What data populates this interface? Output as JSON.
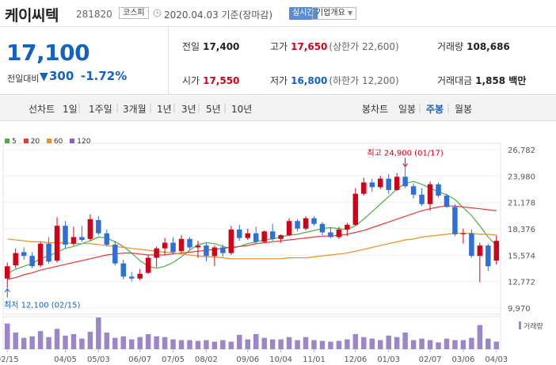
{
  "header": {
    "name": "케이씨텍",
    "code": "281820",
    "market": "코스피",
    "date": "2020.04.03 기준(장마감)",
    "live": "실시간",
    "overview": "기업개요"
  },
  "quote": {
    "price": "17,100",
    "change_label": "전일대비",
    "change_arrow": "▼",
    "change": "300",
    "change_pct": "-1.72%"
  },
  "stats": {
    "prev_label": "전일",
    "prev": "17,400",
    "high_label": "고가",
    "high": "17,650",
    "upper_limit": "(상한가 22,600)",
    "volume_label": "거래량",
    "volume": "108,686",
    "open_label": "시가",
    "open": "17,550",
    "low_label": "저가",
    "low": "16,800",
    "lower_limit": "(하한가 12,200)",
    "amount_label": "거래대금",
    "amount": "1,858 백만"
  },
  "periods": {
    "line_label": "선차트",
    "line_items": [
      "1일",
      "1주일",
      "3개월",
      "1년",
      "3년",
      "5년",
      "10년"
    ],
    "candle_label": "봉차트",
    "candle_items": [
      "일봉",
      "주봉",
      "월봉"
    ],
    "candle_selected": 1
  },
  "colors": {
    "up": "#d0021b",
    "down": "#2f6fd6",
    "ma5": "#4caf3e",
    "ma20": "#e53a3a",
    "ma60": "#f08c2a",
    "ma120": "#8a5fc9",
    "volume": "#9b87c8"
  },
  "chart_data": {
    "type": "candlestick",
    "interval": "주봉",
    "legend": [
      "5",
      "20",
      "60",
      "120"
    ],
    "y_ticks": [
      26782,
      23980,
      21178,
      18376,
      15574,
      12772,
      9970
    ],
    "ylim": [
      9970,
      26782
    ],
    "x_ticks": [
      "02/15",
      "04/05",
      "05/03",
      "06/07",
      "07/05",
      "08/02",
      "09/06",
      "10/04",
      "11/01",
      "12/06",
      "01/03",
      "02/07",
      "03/06",
      "04/03"
    ],
    "x_tick_index": [
      0,
      7,
      11,
      16,
      20,
      24,
      29,
      33,
      37,
      42,
      46,
      51,
      55,
      59
    ],
    "annotations": {
      "high_label": "최고 24,900 (01/17)",
      "high_value": 24900,
      "high_index": 48,
      "low_label": "최저 12,100 (02/15)",
      "low_value": 12100,
      "low_index": 0
    },
    "volume_label": "거래량",
    "candles": [
      {
        "o": 13100,
        "h": 14800,
        "l": 12100,
        "c": 14400
      },
      {
        "o": 14500,
        "h": 16300,
        "l": 14200,
        "c": 15800
      },
      {
        "o": 15900,
        "h": 16400,
        "l": 15100,
        "c": 15500
      },
      {
        "o": 15500,
        "h": 15900,
        "l": 14200,
        "c": 14400
      },
      {
        "o": 14500,
        "h": 17000,
        "l": 14300,
        "c": 16800
      },
      {
        "o": 16800,
        "h": 17500,
        "l": 14700,
        "c": 14900
      },
      {
        "o": 15000,
        "h": 19600,
        "l": 14800,
        "c": 18700
      },
      {
        "o": 18700,
        "h": 19200,
        "l": 16300,
        "c": 16700
      },
      {
        "o": 16800,
        "h": 18600,
        "l": 16600,
        "c": 17500
      },
      {
        "o": 17500,
        "h": 18700,
        "l": 17000,
        "c": 17200
      },
      {
        "o": 17300,
        "h": 19900,
        "l": 17100,
        "c": 19400
      },
      {
        "o": 19300,
        "h": 19700,
        "l": 17700,
        "c": 17900
      },
      {
        "o": 17900,
        "h": 18300,
        "l": 16500,
        "c": 16700
      },
      {
        "o": 16700,
        "h": 17100,
        "l": 14500,
        "c": 14700
      },
      {
        "o": 14700,
        "h": 15100,
        "l": 13000,
        "c": 13300
      },
      {
        "o": 13300,
        "h": 13800,
        "l": 12800,
        "c": 13100
      },
      {
        "o": 13100,
        "h": 14100,
        "l": 12900,
        "c": 13600
      },
      {
        "o": 13700,
        "h": 15600,
        "l": 13600,
        "c": 15300
      },
      {
        "o": 15300,
        "h": 16500,
        "l": 14300,
        "c": 16300
      },
      {
        "o": 16300,
        "h": 17400,
        "l": 15600,
        "c": 16900
      },
      {
        "o": 16900,
        "h": 17500,
        "l": 15700,
        "c": 15900
      },
      {
        "o": 16000,
        "h": 17700,
        "l": 15800,
        "c": 17300
      },
      {
        "o": 17300,
        "h": 17500,
        "l": 16200,
        "c": 16400
      },
      {
        "o": 16400,
        "h": 17100,
        "l": 15300,
        "c": 16600
      },
      {
        "o": 16600,
        "h": 16900,
        "l": 14900,
        "c": 15500
      },
      {
        "o": 15500,
        "h": 16600,
        "l": 14400,
        "c": 16400
      },
      {
        "o": 16400,
        "h": 16700,
        "l": 15400,
        "c": 15800
      },
      {
        "o": 15800,
        "h": 18700,
        "l": 15600,
        "c": 18300
      },
      {
        "o": 18300,
        "h": 18800,
        "l": 17100,
        "c": 17400
      },
      {
        "o": 17400,
        "h": 18400,
        "l": 17200,
        "c": 17900
      },
      {
        "o": 17900,
        "h": 18600,
        "l": 16800,
        "c": 17000
      },
      {
        "o": 17000,
        "h": 18200,
        "l": 16900,
        "c": 18100
      },
      {
        "o": 18100,
        "h": 18900,
        "l": 17100,
        "c": 17300
      },
      {
        "o": 17300,
        "h": 17800,
        "l": 16900,
        "c": 17700
      },
      {
        "o": 17700,
        "h": 19500,
        "l": 17600,
        "c": 19200
      },
      {
        "o": 19200,
        "h": 19400,
        "l": 18100,
        "c": 18400
      },
      {
        "o": 18400,
        "h": 19700,
        "l": 18200,
        "c": 19500
      },
      {
        "o": 19500,
        "h": 19700,
        "l": 18700,
        "c": 18900
      },
      {
        "o": 18900,
        "h": 19100,
        "l": 17700,
        "c": 18000
      },
      {
        "o": 18000,
        "h": 18500,
        "l": 17400,
        "c": 17500
      },
      {
        "o": 17500,
        "h": 18600,
        "l": 17300,
        "c": 18300
      },
      {
        "o": 18300,
        "h": 19000,
        "l": 17600,
        "c": 18800
      },
      {
        "o": 18800,
        "h": 22700,
        "l": 18700,
        "c": 22100
      },
      {
        "o": 22100,
        "h": 23800,
        "l": 21900,
        "c": 23300
      },
      {
        "o": 23300,
        "h": 23700,
        "l": 22300,
        "c": 22800
      },
      {
        "o": 22800,
        "h": 24000,
        "l": 22600,
        "c": 23700
      },
      {
        "o": 23700,
        "h": 24200,
        "l": 22100,
        "c": 22500
      },
      {
        "o": 22500,
        "h": 24300,
        "l": 22400,
        "c": 23900
      },
      {
        "o": 23900,
        "h": 24900,
        "l": 22700,
        "c": 22900
      },
      {
        "o": 22900,
        "h": 23200,
        "l": 21600,
        "c": 22000
      },
      {
        "o": 22000,
        "h": 22700,
        "l": 20800,
        "c": 21000
      },
      {
        "o": 21000,
        "h": 23400,
        "l": 20300,
        "c": 23100
      },
      {
        "o": 23100,
        "h": 23300,
        "l": 21700,
        "c": 21900
      },
      {
        "o": 21900,
        "h": 22100,
        "l": 20600,
        "c": 20700
      },
      {
        "o": 20700,
        "h": 21000,
        "l": 17600,
        "c": 17800
      },
      {
        "o": 17800,
        "h": 18400,
        "l": 16800,
        "c": 17900
      },
      {
        "o": 17900,
        "h": 18300,
        "l": 15300,
        "c": 15500
      },
      {
        "o": 15500,
        "h": 16900,
        "l": 12700,
        "c": 16600
      },
      {
        "o": 16600,
        "h": 16800,
        "l": 13900,
        "c": 14400
      },
      {
        "o": 15000,
        "h": 17650,
        "l": 14600,
        "c": 17100
      }
    ],
    "volumes": [
      3.4,
      2.2,
      1.5,
      1.7,
      2.4,
      1.6,
      2.7,
      1.8,
      2.0,
      1.4,
      2.3,
      4.2,
      2.2,
      1.5,
      1.7,
      1.3,
      1.6,
      2.0,
      1.7,
      1.6,
      1.3,
      1.2,
      1.2,
      1.1,
      1.2,
      1.0,
      1.2,
      1.0,
      1.9,
      1.3,
      2.0,
      1.5,
      1.3,
      1.3,
      1.6,
      1.2,
      1.6,
      1.2,
      1.1,
      1.0,
      1.1,
      1.3,
      2.0,
      1.6,
      1.4,
      1.2,
      1.8,
      1.6,
      2.2,
      1.2,
      1.4,
      1.2,
      0.9,
      1.4,
      1.2,
      1.2,
      1.5,
      3.2,
      1.4,
      1.0
    ],
    "ma": {
      "5": [
        13600,
        14100,
        14400,
        14700,
        15200,
        15500,
        15900,
        16300,
        16500,
        16800,
        17100,
        17500,
        17400,
        17000,
        16500,
        15800,
        15000,
        14400,
        14200,
        14400,
        14800,
        15400,
        16100,
        16700,
        16900,
        16800,
        16500,
        16300,
        16500,
        16800,
        17000,
        17200,
        17300,
        17500,
        17700,
        17800,
        18000,
        18200,
        18400,
        18500,
        18400,
        18300,
        18700,
        19400,
        20200,
        21000,
        21800,
        22600,
        23200,
        23400,
        23100,
        22700,
        22300,
        22000,
        21500,
        20600,
        19800,
        18700,
        17500,
        16600
      ],
      "20": [
        13000,
        13200,
        13500,
        13700,
        14000,
        14200,
        14400,
        14600,
        14800,
        15000,
        15200,
        15400,
        15600,
        15700,
        15800,
        15800,
        15700,
        15600,
        15600,
        15600,
        15700,
        15800,
        15900,
        16000,
        16100,
        16200,
        16300,
        16400,
        16500,
        16600,
        16800,
        16900,
        17000,
        17100,
        17200,
        17300,
        17400,
        17500,
        17600,
        17600,
        17700,
        17800,
        18000,
        18200,
        18500,
        18800,
        19100,
        19400,
        19700,
        20000,
        20300,
        20500,
        20700,
        20800,
        20800,
        20700,
        20600,
        20500,
        20400,
        20300
      ],
      "60": [
        17300,
        17200,
        17100,
        17000,
        17000,
        16900,
        16900,
        16900,
        16800,
        16800,
        16800,
        16700,
        16600,
        16500,
        16400,
        16300,
        16200,
        16100,
        16000,
        15900,
        15800,
        15700,
        15600,
        15500,
        15400,
        15400,
        15300,
        15200,
        15200,
        15200,
        15200,
        15200,
        15200,
        15200,
        15300,
        15300,
        15300,
        15400,
        15500,
        15600,
        15700,
        15800,
        16000,
        16200,
        16400,
        16600,
        16800,
        17000,
        17200,
        17300,
        17500,
        17600,
        17700,
        17800,
        17900,
        17900,
        17900,
        17800,
        17800,
        17700
      ]
    }
  }
}
